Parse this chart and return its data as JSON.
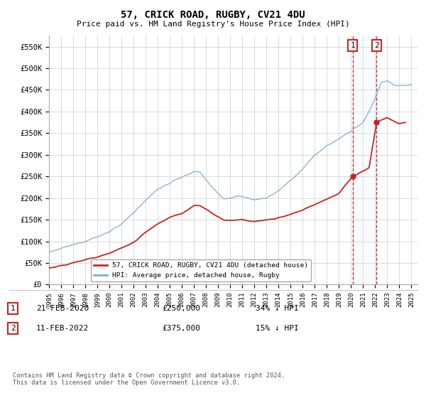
{
  "title": "57, CRICK ROAD, RUGBY, CV21 4DU",
  "subtitle": "Price paid vs. HM Land Registry's House Price Index (HPI)",
  "hpi_color": "#7aaed6",
  "price_color": "#cc2222",
  "vline_color": "#cc2222",
  "vshade_color": "#ddeeff",
  "purchase1_date": "21-FEB-2020",
  "purchase1_price": 250000,
  "purchase1_label": "34% ↓ HPI",
  "purchase1_year": 2020.13,
  "purchase2_date": "11-FEB-2022",
  "purchase2_price": 375000,
  "purchase2_label": "15% ↓ HPI",
  "purchase2_year": 2022.12,
  "legend_label1": "57, CRICK ROAD, RUGBY, CV21 4DU (detached house)",
  "legend_label2": "HPI: Average price, detached house, Rugby",
  "footer": "Contains HM Land Registry data © Crown copyright and database right 2024.\nThis data is licensed under the Open Government Licence v3.0.",
  "ylim": [
    0,
    575000
  ],
  "xlim_start": 1995.0,
  "xlim_end": 2025.5,
  "yticks": [
    0,
    50000,
    100000,
    150000,
    200000,
    250000,
    300000,
    350000,
    400000,
    450000,
    500000,
    550000
  ],
  "ytick_labels": [
    "£0",
    "£50K",
    "£100K",
    "£150K",
    "£200K",
    "£250K",
    "£300K",
    "£350K",
    "£400K",
    "£450K",
    "£500K",
    "£550K"
  ],
  "xticks": [
    1995,
    1996,
    1997,
    1998,
    1999,
    2000,
    2001,
    2002,
    2003,
    2004,
    2005,
    2006,
    2007,
    2008,
    2009,
    2010,
    2011,
    2012,
    2013,
    2014,
    2015,
    2016,
    2017,
    2018,
    2019,
    2020,
    2021,
    2022,
    2023,
    2024,
    2025
  ]
}
